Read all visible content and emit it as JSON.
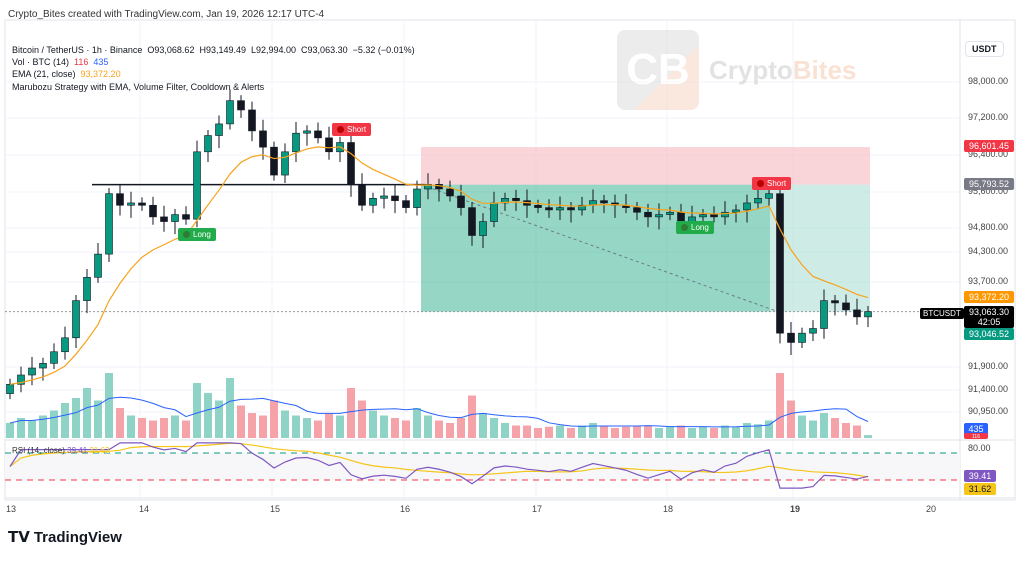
{
  "credit": "Crypto_Bites created with TradingView.com, Jan 19, 2026 12:17 UTC-4",
  "legend": {
    "symbol": "Bitcoin / TetherUS · 1h · Binance",
    "open": "O93,068.62",
    "high": "H93,149.49",
    "low": "L92,994.00",
    "close": "C93,063.30",
    "change": "−5.32 (−0.01%)",
    "vol_label": "Vol · BTC (14)",
    "vol_a": "116",
    "vol_b": "435",
    "ema_label": "EMA (21, close)",
    "ema_value": "93,372.20",
    "strategy": "Marubozu Strategy with EMA, Volume Filter, Cooldown & Alerts"
  },
  "watermark": {
    "mark": "CB",
    "name_a": "Crypto",
    "name_b": "Bites"
  },
  "axis": {
    "currency": "USDT",
    "price_ticks": [
      "98,000.00",
      "97,200.00",
      "96,400.00",
      "95,600.00",
      "94,800.00",
      "94,300.00",
      "93,700.00",
      "91,900.00",
      "91,400.00",
      "90,950.00"
    ],
    "rsi_tick": "80.00",
    "days": [
      "13",
      "14",
      "15",
      "16",
      "17",
      "18",
      "19",
      "20"
    ]
  },
  "tags": {
    "stop": "96,601.45",
    "entry": "95,793.52",
    "ema": "93,372.20",
    "symbol": "BTCUSDT",
    "last": "93,063.30",
    "countdown": "42:05",
    "bid": "93,046.52",
    "vol_ma": "435",
    "vol": "116",
    "rsi": "39.41",
    "rsi_ma": "31.62"
  },
  "rsi_legend": {
    "label": "RSI (14, close)",
    "value": "39.41",
    "ma": "31.62"
  },
  "signals": [
    {
      "label": "Long",
      "type": "long"
    },
    {
      "label": "Short",
      "type": "short"
    },
    {
      "label": "Long",
      "type": "long"
    },
    {
      "label": "Short",
      "type": "short"
    }
  ],
  "colors": {
    "up": "#089981",
    "down": "#f23645",
    "ema": "#f7a21b",
    "rsi": "#7e57c2",
    "rsi_ma": "#f5c518",
    "vol_up": "#8fd3c7",
    "vol_down": "#f5a3a8",
    "vol_ma": "#2962ff"
  },
  "chart_data": {
    "type": "candlestick",
    "interval_hours": 2,
    "start": "Jan 13",
    "closes": [
      91500,
      91700,
      91850,
      91950,
      92200,
      92500,
      93300,
      93800,
      94300,
      95600,
      95350,
      95400,
      95350,
      95100,
      95000,
      95150,
      95050,
      96500,
      96850,
      97100,
      97600,
      97400,
      96950,
      96600,
      96000,
      96500,
      96900,
      96950,
      96800,
      96500,
      96700,
      95800,
      95350,
      95500,
      95550,
      95450,
      95300,
      95700,
      95800,
      95700,
      95550,
      95300,
      94700,
      95000,
      95400,
      95500,
      95450,
      95350,
      95300,
      95250,
      95300,
      95250,
      95350,
      95450,
      95400,
      95350,
      95300,
      95200,
      95100,
      95150,
      95200,
      95000,
      95100,
      95150,
      95100,
      95200,
      95250,
      95400,
      95500,
      95600,
      92600,
      92400,
      92600,
      92700,
      93300,
      93250,
      93100,
      92950,
      93063
    ],
    "volumes": [
      600,
      800,
      700,
      900,
      1100,
      1400,
      1600,
      2000,
      1500,
      2600,
      1200,
      900,
      800,
      700,
      800,
      900,
      700,
      2200,
      1800,
      1500,
      2400,
      1300,
      1000,
      900,
      1500,
      1100,
      900,
      800,
      700,
      1000,
      900,
      2000,
      1500,
      1100,
      900,
      800,
      700,
      1200,
      900,
      700,
      600,
      800,
      1700,
      1000,
      800,
      600,
      500,
      500,
      400,
      450,
      500,
      400,
      500,
      600,
      500,
      400,
      450,
      500,
      500,
      400,
      450,
      500,
      400,
      450,
      400,
      500,
      450,
      600,
      550,
      700,
      2600,
      1500,
      900,
      700,
      1000,
      800,
      600,
      500,
      116
    ],
    "position": {
      "stop": 96601.45,
      "entry": 95793.52,
      "target": 93063.3
    },
    "level": 95793.52,
    "ylim": [
      90700,
      98400
    ],
    "rsi_levels": [
      70,
      30
    ]
  }
}
